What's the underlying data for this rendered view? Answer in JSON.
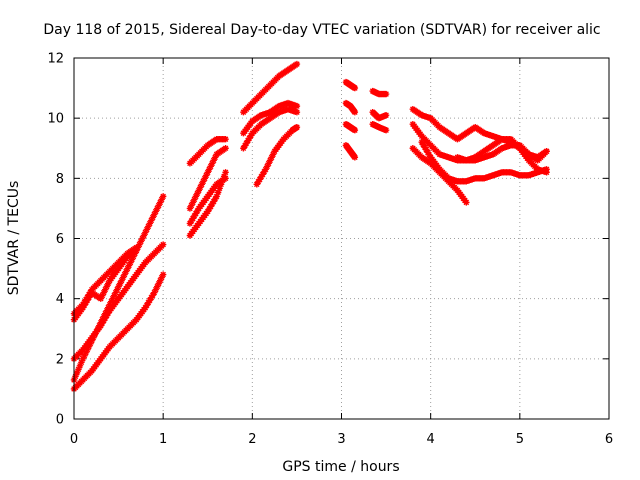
{
  "chart_data": {
    "type": "scatter",
    "title": "Day 118 of 2015, Sidereal Day-to-day VTEC variation (SDTVAR) for receiver alic",
    "xlabel": "GPS time / hours",
    "ylabel": "SDTVAR / TECUs",
    "xlim": [
      0,
      6
    ],
    "ylim": [
      0,
      12
    ],
    "x_ticks": [
      "0",
      "1",
      "2",
      "3",
      "4",
      "5",
      "6"
    ],
    "y_ticks": [
      "0",
      "2",
      "4",
      "6",
      "8",
      "10",
      "12"
    ],
    "grid": true,
    "marker": "star",
    "series_color": "#ff0000",
    "series": [
      {
        "x": [
          0.0,
          0.1,
          0.2,
          0.3,
          0.4,
          0.5,
          0.6,
          0.7,
          0.8,
          0.9,
          1.0
        ],
        "y": [
          1.0,
          1.3,
          1.6,
          2.0,
          2.4,
          2.7,
          3.0,
          3.3,
          3.7,
          4.2,
          4.8
        ]
      },
      {
        "x": [
          0.0,
          0.1,
          0.2,
          0.3,
          0.4,
          0.5,
          0.6,
          0.7,
          0.8,
          0.9,
          1.0
        ],
        "y": [
          2.0,
          2.3,
          2.7,
          3.1,
          3.6,
          4.0,
          4.4,
          4.8,
          5.2,
          5.5,
          5.8
        ]
      },
      {
        "x": [
          0.0,
          0.1,
          0.2,
          0.3,
          0.4,
          0.5,
          0.6,
          0.7,
          0.8,
          0.9,
          1.0
        ],
        "y": [
          1.3,
          2.0,
          2.6,
          3.2,
          3.8,
          4.4,
          5.0,
          5.6,
          6.2,
          6.8,
          7.4
        ]
      },
      {
        "x": [
          0.0,
          0.1,
          0.2,
          0.3,
          0.4,
          0.5,
          0.6,
          0.7
        ],
        "y": [
          3.5,
          3.8,
          4.3,
          4.6,
          4.9,
          5.2,
          5.5,
          5.7
        ]
      },
      {
        "x": [
          0.0,
          0.1,
          0.2,
          0.3,
          0.4,
          0.5,
          0.6,
          0.7
        ],
        "y": [
          3.3,
          3.7,
          4.2,
          4.0,
          4.6,
          5.0,
          5.4,
          5.6
        ]
      },
      {
        "x": [
          1.3,
          1.4,
          1.5,
          1.6,
          1.7
        ],
        "y": [
          8.5,
          8.8,
          9.1,
          9.3,
          9.3
        ]
      },
      {
        "x": [
          1.3,
          1.4,
          1.5,
          1.6,
          1.7
        ],
        "y": [
          7.0,
          7.6,
          8.2,
          8.8,
          9.0
        ]
      },
      {
        "x": [
          1.3,
          1.4,
          1.5,
          1.6,
          1.7
        ],
        "y": [
          6.1,
          6.5,
          6.9,
          7.4,
          8.2
        ]
      },
      {
        "x": [
          1.3,
          1.4,
          1.5,
          1.6,
          1.7
        ],
        "y": [
          6.5,
          7.0,
          7.4,
          7.8,
          8.0
        ]
      },
      {
        "x": [
          1.9,
          2.0,
          2.1,
          2.2,
          2.3,
          2.4,
          2.5
        ],
        "y": [
          9.0,
          9.5,
          9.8,
          10.0,
          10.2,
          10.3,
          10.2
        ]
      },
      {
        "x": [
          1.9,
          2.0,
          2.1,
          2.2,
          2.3,
          2.4,
          2.5
        ],
        "y": [
          10.2,
          10.5,
          10.8,
          11.1,
          11.4,
          11.6,
          11.8
        ]
      },
      {
        "x": [
          1.9,
          2.0,
          2.1,
          2.2,
          2.3,
          2.4,
          2.5
        ],
        "y": [
          9.5,
          9.9,
          10.1,
          10.2,
          10.4,
          10.5,
          10.4
        ]
      },
      {
        "x": [
          2.05,
          2.15,
          2.25,
          2.35,
          2.45,
          2.5
        ],
        "y": [
          7.8,
          8.3,
          8.9,
          9.3,
          9.6,
          9.7
        ]
      },
      {
        "x": [
          3.05,
          3.1,
          3.15
        ],
        "y": [
          11.2,
          11.1,
          11.0
        ]
      },
      {
        "x": [
          3.05,
          3.1,
          3.15
        ],
        "y": [
          10.5,
          10.4,
          10.2
        ]
      },
      {
        "x": [
          3.05,
          3.1,
          3.15
        ],
        "y": [
          9.8,
          9.7,
          9.6
        ]
      },
      {
        "x": [
          3.05,
          3.1,
          3.15
        ],
        "y": [
          9.1,
          8.9,
          8.7
        ]
      },
      {
        "x": [
          3.35,
          3.42,
          3.5
        ],
        "y": [
          10.9,
          10.8,
          10.8
        ]
      },
      {
        "x": [
          3.35,
          3.42,
          3.5
        ],
        "y": [
          10.2,
          10.0,
          10.1
        ]
      },
      {
        "x": [
          3.35,
          3.42,
          3.5
        ],
        "y": [
          9.8,
          9.7,
          9.6
        ]
      },
      {
        "x": [
          3.8,
          3.9,
          4.0,
          4.1,
          4.2,
          4.3,
          4.4,
          4.5,
          4.6,
          4.7,
          4.8,
          4.9,
          5.0,
          5.1,
          5.2,
          5.3
        ],
        "y": [
          10.3,
          10.1,
          10.0,
          9.7,
          9.5,
          9.3,
          9.5,
          9.7,
          9.5,
          9.4,
          9.3,
          9.2,
          9.0,
          8.8,
          8.7,
          8.9
        ]
      },
      {
        "x": [
          3.8,
          3.9,
          4.0,
          4.1,
          4.2,
          4.3,
          4.4,
          4.5,
          4.6,
          4.7,
          4.8,
          4.9,
          5.0,
          5.1,
          5.2,
          5.3
        ],
        "y": [
          9.8,
          9.4,
          9.1,
          8.8,
          8.7,
          8.6,
          8.6,
          8.6,
          8.7,
          8.8,
          9.0,
          9.1,
          9.1,
          8.8,
          8.6,
          8.9
        ]
      },
      {
        "x": [
          3.8,
          3.9,
          4.0,
          4.1,
          4.2,
          4.3,
          4.4
        ],
        "y": [
          9.0,
          8.7,
          8.5,
          8.2,
          7.9,
          7.6,
          7.2
        ]
      },
      {
        "x": [
          3.9,
          4.0,
          4.1,
          4.2,
          4.3,
          4.4,
          4.5,
          4.6,
          4.7,
          4.8,
          4.9,
          5.0,
          5.1,
          5.2,
          5.3
        ],
        "y": [
          9.2,
          8.7,
          8.3,
          8.0,
          7.9,
          7.9,
          8.0,
          8.0,
          8.1,
          8.2,
          8.2,
          8.1,
          8.1,
          8.2,
          8.3
        ]
      },
      {
        "x": [
          4.3,
          4.4,
          4.5,
          4.6,
          4.7,
          4.8,
          4.9,
          5.0,
          5.1,
          5.2,
          5.3
        ],
        "y": [
          8.7,
          8.6,
          8.7,
          8.9,
          9.1,
          9.3,
          9.3,
          9.0,
          8.6,
          8.3,
          8.2
        ]
      }
    ]
  }
}
